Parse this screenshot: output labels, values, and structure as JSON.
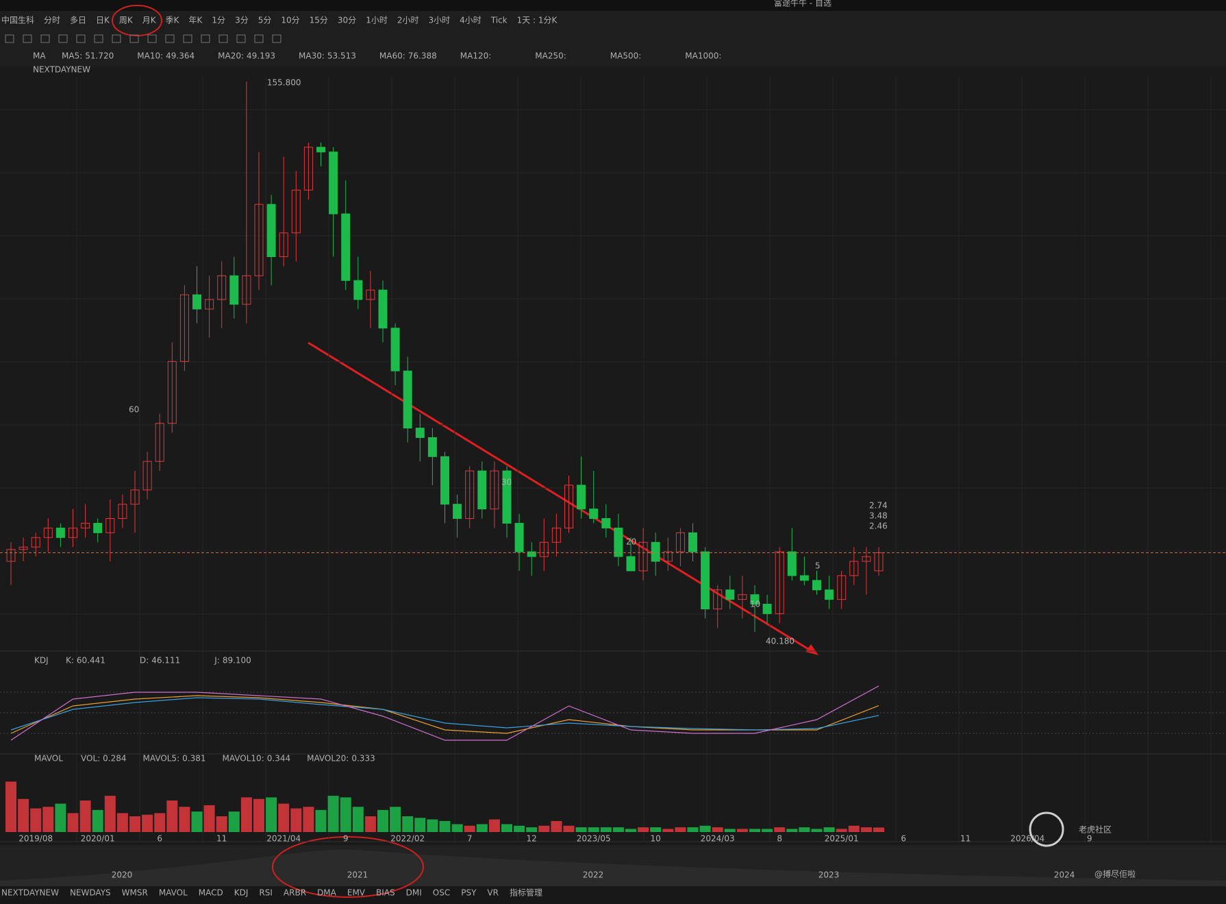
{
  "window_title": "富途牛牛 - 自选",
  "period_tabs": [
    "中国生科",
    "分时",
    "多日",
    "日K",
    "周K",
    "月K",
    "季K",
    "年K",
    "1分",
    "3分",
    "5分",
    "10分",
    "15分",
    "30分",
    "1小时",
    "2小时",
    "3小时",
    "4小时",
    "Tick",
    "1天 : 1分K"
  ],
  "ma_legend": {
    "name": "MA",
    "items": [
      {
        "label": "MA5:",
        "value": "51.720",
        "color": "#f0a030"
      },
      {
        "label": "MA10:",
        "value": "49.364",
        "color": "#3aa0e0"
      },
      {
        "label": "MA20:",
        "value": "49.193",
        "color": "#d070d0"
      },
      {
        "label": "MA30:",
        "value": "53.513",
        "color": "#3a8fd0"
      },
      {
        "label": "MA60:",
        "value": "76.388",
        "color": "#40c080"
      },
      {
        "label": "MA120:",
        "value": "",
        "color": "#e05050"
      },
      {
        "label": "MA250:",
        "value": "",
        "color": "#4090e0"
      },
      {
        "label": "MA500:",
        "value": "",
        "color": "#e0b040"
      },
      {
        "label": "MA1000:",
        "value": "",
        "color": "#9060e0"
      }
    ]
  },
  "indicator2": "NEXTDAYNEW",
  "chart_data": {
    "type": "candlestick",
    "up_color": "#e0393e",
    "down_color": "#1dbb4c",
    "candles": [
      [
        55,
        59,
        50,
        57.5
      ],
      [
        57.5,
        60,
        55,
        58
      ],
      [
        58,
        61,
        56,
        60
      ],
      [
        60,
        64,
        57,
        62
      ],
      [
        62,
        63,
        58,
        60
      ],
      [
        60,
        66,
        58,
        62
      ],
      [
        62,
        67,
        60,
        63
      ],
      [
        63,
        64,
        59,
        61
      ],
      [
        61,
        68,
        55,
        64
      ],
      [
        64,
        69,
        62,
        67
      ],
      [
        67,
        74,
        61,
        70
      ],
      [
        70,
        78,
        68,
        76
      ],
      [
        76,
        86,
        74,
        84
      ],
      [
        84,
        101,
        82,
        97
      ],
      [
        97,
        113,
        95,
        111
      ],
      [
        111,
        117,
        105,
        108
      ],
      [
        108,
        115,
        102,
        110
      ],
      [
        110,
        118,
        104,
        115
      ],
      [
        115,
        119,
        106,
        109
      ],
      [
        109,
        155.8,
        105,
        115
      ],
      [
        115,
        141,
        112,
        130
      ],
      [
        130,
        132,
        113,
        119
      ],
      [
        119,
        140,
        117,
        124
      ],
      [
        124,
        137,
        118,
        133
      ],
      [
        133,
        143,
        131,
        142
      ],
      [
        142,
        143,
        138,
        141
      ],
      [
        141,
        142,
        119,
        128
      ],
      [
        128,
        135,
        112,
        114
      ],
      [
        114,
        119,
        108,
        110
      ],
      [
        110,
        116,
        104,
        112
      ],
      [
        112,
        114,
        101,
        104
      ],
      [
        104,
        105,
        92,
        95
      ],
      [
        95,
        98,
        80,
        83
      ],
      [
        83,
        86,
        76,
        81
      ],
      [
        81,
        83,
        71,
        77
      ],
      [
        77,
        78,
        63,
        67
      ],
      [
        67,
        69,
        60,
        64
      ],
      [
        64,
        75,
        62,
        74
      ],
      [
        74,
        76,
        64,
        66
      ],
      [
        66,
        76,
        62,
        74
      ],
      [
        74,
        75,
        60,
        63
      ],
      [
        63,
        65,
        53,
        57
      ],
      [
        57,
        59,
        52,
        56
      ],
      [
        56,
        64,
        53,
        59
      ],
      [
        59,
        65,
        56,
        62
      ],
      [
        62,
        73,
        61,
        71
      ],
      [
        71,
        77,
        64,
        66
      ],
      [
        66,
        74,
        63,
        64
      ],
      [
        64,
        67,
        60,
        62
      ],
      [
        62,
        65,
        54,
        56
      ],
      [
        56,
        60,
        53,
        53
      ],
      [
        53,
        62,
        51,
        59
      ],
      [
        59,
        61,
        52,
        55
      ],
      [
        55,
        60,
        53,
        57
      ],
      [
        57,
        62,
        54,
        61
      ],
      [
        61,
        63,
        55,
        57
      ],
      [
        57,
        58,
        43,
        45
      ],
      [
        45,
        50,
        41,
        49
      ],
      [
        49,
        52,
        45,
        47
      ],
      [
        47,
        52,
        43,
        48
      ],
      [
        48,
        50,
        40.18,
        46
      ],
      [
        46,
        48,
        42,
        44
      ],
      [
        44,
        58,
        42,
        57
      ],
      [
        57,
        62,
        51,
        52
      ],
      [
        52,
        56,
        50,
        51
      ],
      [
        51,
        53,
        48,
        49
      ],
      [
        49,
        52,
        45,
        47
      ],
      [
        47,
        53,
        45,
        52
      ],
      [
        52,
        58,
        50,
        55
      ],
      [
        55,
        58,
        48,
        56
      ],
      [
        53,
        58,
        52,
        56.8
      ]
    ],
    "high_label": "155.800",
    "low_label": "40.180",
    "ma_labels": [
      "60",
      "30",
      "20",
      "10",
      "5"
    ],
    "side_labels": [
      {
        "text": "2.74",
        "color": "#f0a030"
      },
      {
        "text": "3.48",
        "color": "#3aa0e0"
      },
      {
        "text": "2.46",
        "color": "#d070d0"
      }
    ],
    "kdj": {
      "name": "KDJ",
      "legend": [
        {
          "label": "K:",
          "value": "60.441",
          "color": "#f0a030"
        },
        {
          "label": "D:",
          "value": "46.111",
          "color": "#3aa0e0"
        },
        {
          "label": "J:",
          "value": "89.100",
          "color": "#d070d0"
        }
      ],
      "x": [
        0,
        5,
        10,
        15,
        20,
        25,
        30,
        35,
        40,
        45,
        50,
        55,
        60,
        65,
        70
      ],
      "ylim": [
        0,
        100
      ],
      "levels": [
        80,
        50,
        20
      ],
      "series": [
        {
          "color": "#f0a030",
          "values": [
            20,
            60,
            70,
            75,
            72,
            65,
            55,
            25,
            20,
            40,
            30,
            25,
            25,
            25,
            60.441
          ]
        },
        {
          "color": "#3aa0e0",
          "values": [
            25,
            55,
            65,
            72,
            70,
            62,
            55,
            35,
            28,
            35,
            30,
            27,
            25,
            27,
            46.111
          ]
        },
        {
          "color": "#d070d0",
          "values": [
            10,
            70,
            80,
            80,
            75,
            70,
            45,
            10,
            10,
            60,
            25,
            20,
            20,
            40,
            89.1
          ]
        }
      ]
    },
    "volume": {
      "name": "MAVOL",
      "legend": [
        {
          "label": "VOL:",
          "value": "0.284",
          "color": "#f0a030"
        },
        {
          "label": "MAVOL5:",
          "value": "0.381",
          "color": "#f0a030"
        },
        {
          "label": "MAVOL10:",
          "value": "0.344",
          "color": "#3aa0e0"
        },
        {
          "label": "MAVOL20:",
          "value": "0.333",
          "color": "#d070d0"
        }
      ],
      "values": [
        3.2,
        2.1,
        1.5,
        1.6,
        1.8,
        1.2,
        2.0,
        1.4,
        2.3,
        1.2,
        1.0,
        1.1,
        1.2,
        2.0,
        1.6,
        1.3,
        1.7,
        1.0,
        1.3,
        2.2,
        2.1,
        2.2,
        1.8,
        1.5,
        1.6,
        1.4,
        2.3,
        2.2,
        1.6,
        1.0,
        1.4,
        1.6,
        1.0,
        0.9,
        0.8,
        0.7,
        0.5,
        0.4,
        0.5,
        0.8,
        0.5,
        0.4,
        0.3,
        0.4,
        0.7,
        0.4,
        0.3,
        0.3,
        0.3,
        0.3,
        0.2,
        0.3,
        0.3,
        0.2,
        0.3,
        0.3,
        0.4,
        0.3,
        0.2,
        0.2,
        0.2,
        0.2,
        0.3,
        0.2,
        0.3,
        0.2,
        0.3,
        0.2,
        0.4,
        0.3,
        0.284
      ]
    },
    "x_labels": [
      "2019/08",
      "2020/01",
      "6",
      "11",
      "2021/04",
      "9",
      "2022/02",
      "7",
      "12",
      "2023/05",
      "10",
      "2024/03",
      "8",
      "2025/01",
      "6",
      "11",
      "2026/04",
      "9"
    ]
  },
  "navigator_years": [
    "2020",
    "2021",
    "2022",
    "2023",
    "2024"
  ],
  "bottom_tabs": [
    "NEXTDAYNEW",
    "NEWDAYS",
    "WMSR",
    "MAVOL",
    "MACD",
    "KDJ",
    "RSI",
    "ARBR",
    "DMA",
    "EMV",
    "BIAS",
    "DMI",
    "OSC",
    "PSY",
    "VR",
    "指标管理"
  ],
  "watermark": {
    "brand": "老虎社区",
    "user": "@搏尽佢啦"
  }
}
